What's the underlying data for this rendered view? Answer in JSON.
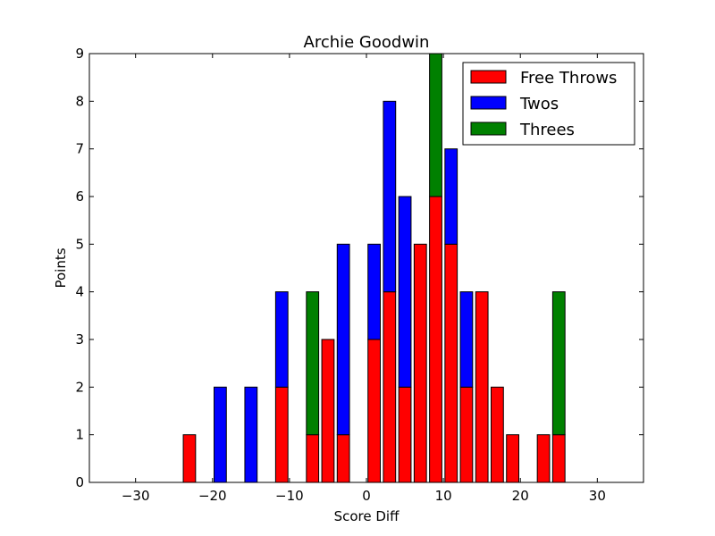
{
  "chart_data": {
    "type": "bar",
    "stacked": true,
    "title": "Archie Goodwin",
    "xlabel": "Score Diff",
    "ylabel": "Points",
    "xlim": [
      -36,
      36
    ],
    "ylim": [
      0,
      9
    ],
    "xticks": [
      -30,
      -20,
      -10,
      0,
      10,
      20,
      30
    ],
    "xtick_labels": [
      "−30",
      "−20",
      "−10",
      "0",
      "10",
      "20",
      "30"
    ],
    "yticks": [
      0,
      1,
      2,
      3,
      4,
      5,
      6,
      7,
      8,
      9
    ],
    "bar_width": 1.6,
    "x": [
      -35,
      -33,
      -31,
      -29,
      -27,
      -25,
      -23,
      -21,
      -19,
      -17,
      -15,
      -13,
      -11,
      -9,
      -7,
      -5,
      -3,
      -1,
      1,
      3,
      5,
      7,
      9,
      11,
      13,
      15,
      17,
      19,
      21,
      23,
      25,
      27,
      29,
      31,
      33,
      35
    ],
    "series": [
      {
        "name": "Free Throws",
        "color": "#ff0000",
        "values": [
          0,
          0,
          0,
          0,
          0,
          0,
          1,
          0,
          0,
          0,
          0,
          0,
          2,
          0,
          1,
          3,
          1,
          0,
          3,
          4,
          2,
          5,
          6,
          5,
          2,
          4,
          2,
          1,
          0,
          1,
          1,
          0,
          0,
          0,
          0,
          0
        ]
      },
      {
        "name": "Twos",
        "color": "#0000ff",
        "values": [
          0,
          0,
          0,
          0,
          0,
          0,
          0,
          0,
          2,
          0,
          2,
          0,
          2,
          0,
          0,
          0,
          4,
          0,
          2,
          4,
          4,
          0,
          0,
          2,
          2,
          0,
          0,
          0,
          0,
          0,
          0,
          0,
          0,
          0,
          0,
          0
        ]
      },
      {
        "name": "Threes",
        "color": "#008000",
        "values": [
          0,
          0,
          0,
          0,
          0,
          0,
          0,
          0,
          0,
          0,
          0,
          0,
          0,
          0,
          3,
          0,
          0,
          0,
          0,
          0,
          0,
          0,
          3,
          0,
          0,
          0,
          0,
          0,
          0,
          0,
          3,
          0,
          0,
          0,
          0,
          0
        ]
      }
    ],
    "legend_position": "upper right",
    "grid": false
  }
}
